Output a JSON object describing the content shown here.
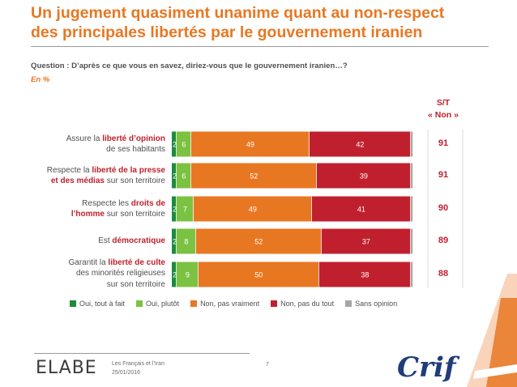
{
  "title_line1": "Un jugement quasiment unanime quant au non-respect",
  "title_line2": "des principales libertés par le gouvernement iranien",
  "question": "Question : D’après ce que vous en savez, diriez-vous que le gouvernement iranien…?",
  "unit": "En %",
  "st_header": {
    "line1": "S/T",
    "line2": "« Non »"
  },
  "rows": [
    {
      "label_parts": [
        [
          [
            "Assure la ",
            false
          ],
          [
            "liberté d’opinion",
            true
          ]
        ],
        [
          [
            "de ses habitants",
            false
          ]
        ]
      ],
      "st": "91"
    },
    {
      "label_parts": [
        [
          [
            "Respecte la ",
            false
          ],
          [
            "liberté de la presse",
            true
          ]
        ],
        [
          [
            "et des médias",
            true
          ],
          [
            " sur son territoire",
            false
          ]
        ]
      ],
      "st": "91"
    },
    {
      "label_parts": [
        [
          [
            "Respecte les ",
            false
          ],
          [
            "droits de",
            true
          ]
        ],
        [
          [
            "l’homme",
            true
          ],
          [
            " sur son territoire",
            false
          ]
        ]
      ],
      "st": "90"
    },
    {
      "label_parts": [
        [
          [
            "Est ",
            false
          ],
          [
            "démocratique",
            true
          ]
        ]
      ],
      "st": "89"
    },
    {
      "label_parts": [
        [
          [
            "Garantit la ",
            false
          ],
          [
            "liberté de culte",
            true
          ]
        ],
        [
          [
            "des minorités religieuses",
            false
          ]
        ],
        [
          [
            "sur son territoire",
            false
          ]
        ]
      ],
      "st": "88"
    }
  ],
  "chart_data": {
    "type": "bar",
    "orientation": "horizontal",
    "stacked": true,
    "categories": [
      "Assure la liberté d’opinion de ses habitants",
      "Respecte la liberté de la presse et des médias sur son territoire",
      "Respecte les droits de l’homme sur son territoire",
      "Est démocratique",
      "Garantit la liberté de culte des minorités religieuses sur son territoire"
    ],
    "series": [
      {
        "name": "Oui, tout à fait",
        "color": "#1e8a3c",
        "values": [
          2,
          2,
          2,
          2,
          2
        ]
      },
      {
        "name": "Oui, plutôt",
        "color": "#7cc242",
        "values": [
          6,
          6,
          7,
          8,
          9
        ]
      },
      {
        "name": "Non, pas vraiment",
        "color": "#e87722",
        "values": [
          49,
          52,
          49,
          52,
          50
        ]
      },
      {
        "name": "Non, pas du tout",
        "color": "#c0202e",
        "values": [
          42,
          39,
          41,
          37,
          38
        ]
      },
      {
        "name": "Sans opinion",
        "color": "#a6a6a6",
        "values": [
          1,
          1,
          1,
          1,
          1
        ]
      }
    ],
    "xlim": [
      0,
      100
    ],
    "legend_position": "bottom",
    "st_non": [
      91,
      91,
      90,
      89,
      88
    ]
  },
  "legend": [
    {
      "label": "Oui, tout à fait",
      "color": "#1e8a3c"
    },
    {
      "label": "Oui, plutôt",
      "color": "#7cc242"
    },
    {
      "label": "Non, pas vraiment",
      "color": "#e87722"
    },
    {
      "label": "Non, pas du tout",
      "color": "#c0202e"
    },
    {
      "label": "Sans opinion",
      "color": "#a6a6a6"
    }
  ],
  "footer": {
    "brand": "ELABE",
    "line1": "Les Français et l’Iran",
    "line2": "25/01/2016",
    "page": "7",
    "partner": "Crif"
  }
}
